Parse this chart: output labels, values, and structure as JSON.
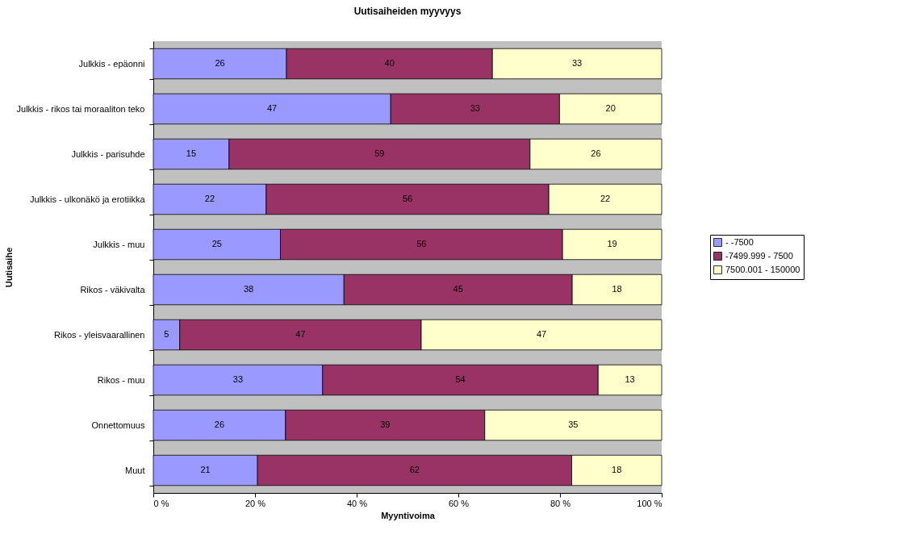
{
  "chart_data": {
    "type": "bar",
    "orientation": "horizontal",
    "stacked": true,
    "title": "Uutisaiheiden myyvyys",
    "xlabel": "Myyntivoima",
    "ylabel": "Uutisaihe",
    "categories": [
      "Julkkis - epäonni",
      "Julkkis - rikos tai moraaliton teko",
      "Julkkis - parisuhde",
      "Julkkis - ulkonäkö ja erotiikka",
      "Julkkis - muu",
      "Rikos - väkivalta",
      "Rikos - yleisvaarallinen",
      "Rikos - muu",
      "Onnettomuus",
      "Muut"
    ],
    "series": [
      {
        "name": "- -7500",
        "color": "#9999ff",
        "values": [
          26.2,
          46.7,
          14.9,
          22.2,
          25.0,
          37.5,
          5.2,
          33.3,
          26.0,
          20.5
        ],
        "value_labels": [
          "26",
          "47",
          "15",
          "22",
          "25",
          "38",
          "5",
          "33",
          "26",
          "21"
        ]
      },
      {
        "name": "-7499.999 - 7500",
        "color": "#993366",
        "values": [
          40.5,
          33.2,
          59.2,
          55.6,
          55.5,
          44.9,
          47.5,
          54.2,
          39.2,
          61.8
        ],
        "value_labels": [
          "40",
          "33",
          "59",
          "56",
          "56",
          "45",
          "47",
          "54",
          "39",
          "62"
        ]
      },
      {
        "name": "7500.001 - 150000",
        "color": "#ffffcc",
        "values": [
          33.3,
          20.1,
          25.9,
          22.2,
          19.5,
          17.6,
          47.3,
          12.5,
          34.8,
          17.7
        ],
        "value_labels": [
          "33",
          "20",
          "26",
          "22",
          "19",
          "18",
          "47",
          "13",
          "35",
          "18"
        ]
      }
    ],
    "xlim": [
      0,
      100
    ],
    "xticks": [
      {
        "value": 0,
        "label": "0 %"
      },
      {
        "value": 20,
        "label": "20 %"
      },
      {
        "value": 40,
        "label": "40 %"
      },
      {
        "value": 60,
        "label": "60 %"
      },
      {
        "value": 80,
        "label": "80 %"
      },
      {
        "value": 100,
        "label": "100 %"
      }
    ],
    "grid": false,
    "legend": "right"
  }
}
